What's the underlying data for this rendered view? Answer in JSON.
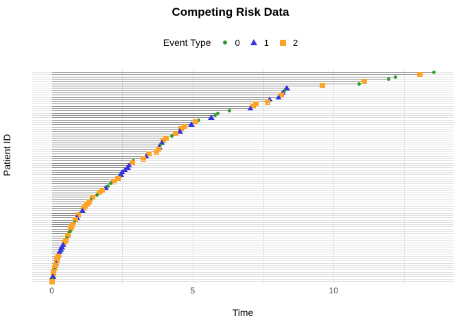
{
  "title": "Competing Risk Data",
  "legend": {
    "title": "Event Type",
    "items": [
      {
        "label": "0",
        "marker": "circle-icon",
        "color": "#2E9B2E"
      },
      {
        "label": "1",
        "marker": "triangle-icon",
        "color": "#3333E0"
      },
      {
        "label": "2",
        "marker": "square-icon",
        "color": "#FDA428"
      }
    ]
  },
  "axes": {
    "x_label": "Time",
    "y_label": "Patient ID",
    "x_ticks": [
      {
        "label": "0",
        "value": 0
      },
      {
        "label": "5",
        "value": 5
      },
      {
        "label": "10",
        "value": 10
      }
    ]
  },
  "style_colors": {
    "segment": "#878787",
    "row_gridline": "#dedede",
    "minor_vgrid": "#e4e4e4",
    "tick_label": "#4d4d4d"
  },
  "chart_data": {
    "type": "scatter",
    "subtype": "event-segment-plot",
    "title": "Competing Risk Data",
    "xlabel": "Time",
    "ylabel": "Patient ID",
    "legend_title": "Event Type",
    "legend_position": "top",
    "grid": "on",
    "x_domain": [
      -0.7,
      14.25
    ],
    "x_breaks": [
      0,
      5,
      10
    ],
    "x_minor_breaks": [
      2.5,
      7.5,
      12.5
    ],
    "n_patients": 93,
    "row_order": "sorted by event time, longest at top",
    "event_type_colors": {
      "0": "#2E9B2E",
      "1": "#3333E0",
      "2": "#FDA428"
    },
    "event_type_markers": {
      "0": "circle",
      "1": "triangle",
      "2": "square"
    },
    "times_top_to_bottom": [
      13.55,
      13.05,
      12.2,
      11.95,
      11.1,
      10.9,
      9.6,
      8.35,
      8.25,
      8.2,
      8.15,
      8.05,
      7.73,
      7.65,
      7.25,
      7.15,
      7.05,
      6.3,
      5.9,
      5.8,
      5.65,
      5.2,
      5.1,
      4.95,
      4.7,
      4.6,
      4.55,
      4.4,
      4.25,
      4.05,
      3.95,
      3.9,
      3.85,
      3.8,
      3.78,
      3.72,
      3.45,
      3.35,
      3.25,
      2.9,
      2.85,
      2.75,
      2.7,
      2.6,
      2.5,
      2.45,
      2.4,
      2.35,
      2.2,
      2.1,
      2.0,
      1.9,
      1.8,
      1.7,
      1.6,
      1.45,
      1.38,
      1.33,
      1.25,
      1.17,
      1.12,
      1.08,
      0.98,
      0.93,
      0.89,
      0.85,
      0.81,
      0.73,
      0.69,
      0.67,
      0.65,
      0.61,
      0.57,
      0.53,
      0.49,
      0.45,
      0.4,
      0.36,
      0.32,
      0.28,
      0.24,
      0.22,
      0.19,
      0.17,
      0.15,
      0.13,
      0.11,
      0.09,
      0.07,
      0.05,
      0.04,
      0.03,
      0.02
    ],
    "events_top_to_bottom": [
      0,
      2,
      0,
      0,
      2,
      0,
      2,
      1,
      0,
      1,
      2,
      1,
      1,
      2,
      2,
      2,
      1,
      0,
      0,
      0,
      1,
      0,
      2,
      1,
      2,
      2,
      1,
      2,
      0,
      2,
      2,
      1,
      0,
      1,
      2,
      2,
      2,
      1,
      2,
      0,
      2,
      1,
      1,
      1,
      1,
      1,
      0,
      2,
      2,
      0,
      0,
      1,
      2,
      2,
      0,
      2,
      0,
      2,
      2,
      2,
      2,
      1,
      0,
      2,
      1,
      2,
      0,
      2,
      2,
      2,
      0,
      0,
      2,
      0,
      2,
      2,
      1,
      1,
      1,
      1,
      1,
      2,
      2,
      2,
      1,
      2,
      2,
      0,
      2,
      2,
      1,
      0,
      2
    ]
  }
}
